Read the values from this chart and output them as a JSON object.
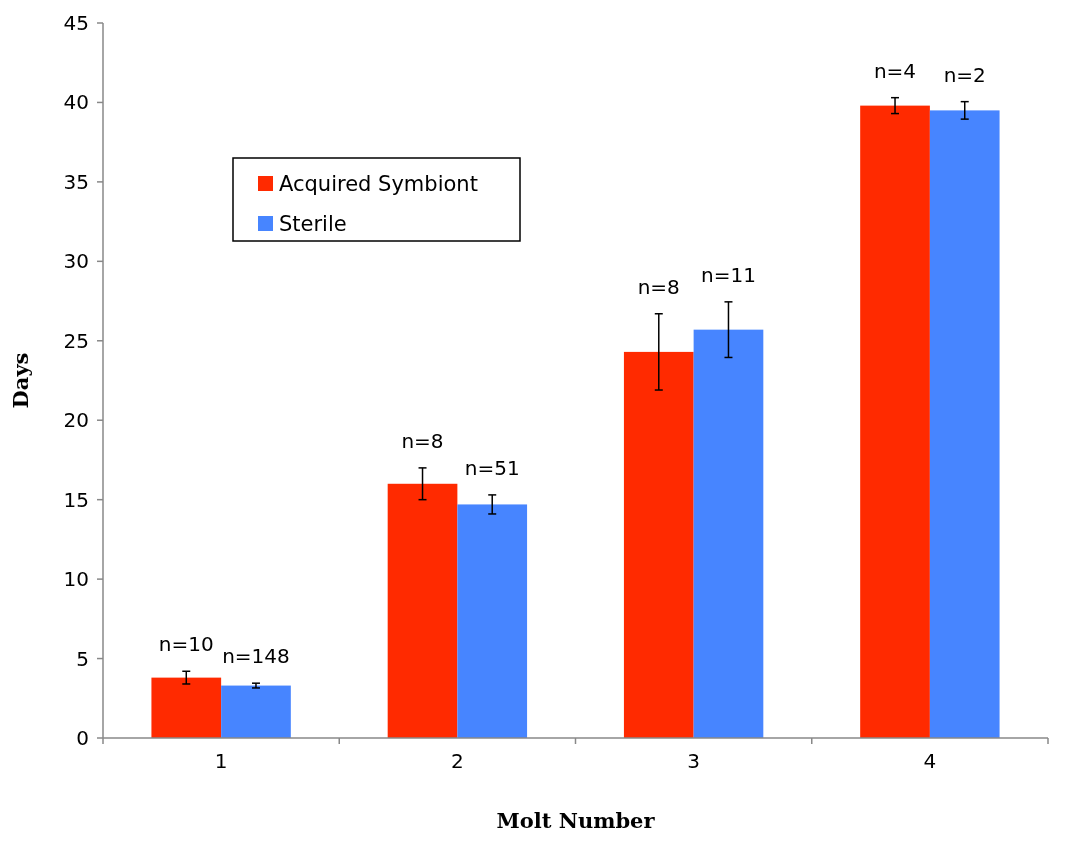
{
  "chart_data": {
    "type": "bar",
    "xlabel": "Molt Number",
    "ylabel": "Days",
    "categories": [
      "1",
      "2",
      "3",
      "4"
    ],
    "series": [
      {
        "name": "Acquired Symbiont",
        "color": "#ff2a00",
        "values": [
          3.8,
          16.0,
          24.3,
          39.8
        ],
        "errors": [
          0.4,
          1.0,
          2.4,
          0.5
        ]
      },
      {
        "name": "Sterile",
        "color": "#4785ff",
        "values": [
          3.3,
          14.7,
          25.7,
          39.5
        ],
        "errors": [
          0.15,
          0.6,
          1.75,
          0.55
        ]
      }
    ],
    "annotations": [
      {
        "text": "n=10",
        "x": "1",
        "y": 3.8
      },
      {
        "text": "n=148",
        "x": "1",
        "y": 3.3
      },
      {
        "text": "n=8",
        "x": "2",
        "y": 16.0
      },
      {
        "text": "n=51",
        "x": "2",
        "y": 14.7
      },
      {
        "text": "n=8",
        "x": "3",
        "y": 24.3
      },
      {
        "text": "n=11",
        "x": "3",
        "y": 25.7
      },
      {
        "text": "n=4",
        "x": "4",
        "y": 39.8
      },
      {
        "text": "n=2",
        "x": "4",
        "y": 39.5
      }
    ],
    "ylim": [
      0,
      45
    ],
    "yticks": [
      0,
      5,
      10,
      15,
      20,
      25,
      30,
      35,
      40,
      45
    ],
    "grid": false,
    "legend": "top left"
  }
}
